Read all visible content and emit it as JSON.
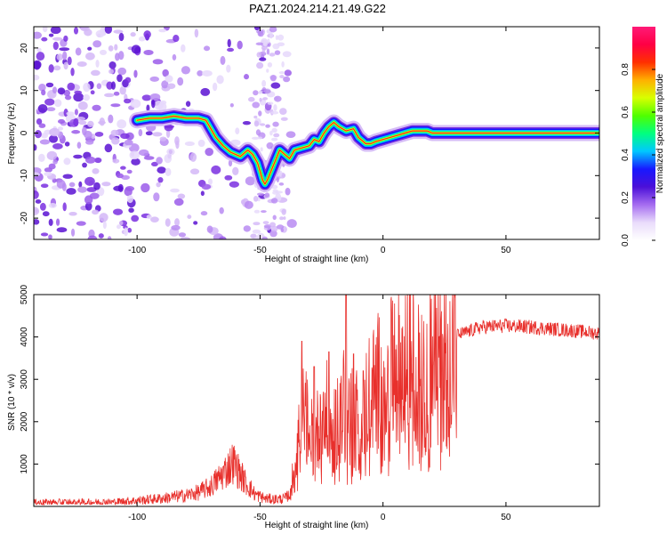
{
  "title": "PAZ1.2024.214.21.49.G22",
  "chart_data": [
    {
      "type": "heatmap",
      "xlabel": "Height of straight line (km)",
      "ylabel": "Frequency (Hz)",
      "xlim": [
        -142,
        88
      ],
      "ylim": [
        -25,
        25
      ],
      "xticks": [
        -100,
        -50,
        0,
        50
      ],
      "yticks": [
        -20,
        -10,
        0,
        10,
        20
      ],
      "ridge_path": [
        [
          -100,
          3
        ],
        [
          -95,
          3.5
        ],
        [
          -90,
          3.5
        ],
        [
          -85,
          4
        ],
        [
          -80,
          3.5
        ],
        [
          -75,
          3.5
        ],
        [
          -72,
          3
        ],
        [
          -70,
          1
        ],
        [
          -68,
          -1
        ],
        [
          -65,
          -3
        ],
        [
          -62,
          -4.5
        ],
        [
          -60,
          -5
        ],
        [
          -58,
          -5.5
        ],
        [
          -55,
          -4
        ],
        [
          -53,
          -5
        ],
        [
          -51,
          -7
        ],
        [
          -50,
          -9
        ],
        [
          -49,
          -11
        ],
        [
          -48,
          -12
        ],
        [
          -47,
          -11
        ],
        [
          -42,
          -4
        ],
        [
          -40,
          -5
        ],
        [
          -38,
          -6
        ],
        [
          -36,
          -4
        ],
        [
          -33,
          -3.5
        ],
        [
          -30,
          -3
        ],
        [
          -28,
          -1.5
        ],
        [
          -26,
          -2
        ],
        [
          -24,
          0
        ],
        [
          -22,
          1.5
        ],
        [
          -20,
          2.5
        ],
        [
          -18,
          1.5
        ],
        [
          -15,
          0.5
        ],
        [
          -12,
          1
        ],
        [
          -10,
          -1
        ],
        [
          -7,
          -2.5
        ],
        [
          -5,
          -2.5
        ],
        [
          -3,
          -2
        ],
        [
          0,
          -1.5
        ],
        [
          3,
          -1
        ],
        [
          6,
          -0.5
        ],
        [
          9,
          0
        ],
        [
          12,
          0.5
        ],
        [
          15,
          0.5
        ],
        [
          18,
          0.5
        ],
        [
          20,
          0
        ],
        [
          88,
          0
        ]
      ],
      "colorbar": {
        "label": "Normalized spectral amplitude",
        "range": [
          0.0,
          1.0
        ],
        "ticks": [
          "0.0",
          "0.2",
          "0.4",
          "0.6",
          "0.8"
        ],
        "colors": [
          "#ffffff",
          "#e9dcfb",
          "#a56cf0",
          "#4b10d8",
          "#1818ff",
          "#00c8ff",
          "#00ff80",
          "#50ff00",
          "#d8ff00",
          "#ffb000",
          "#ff3000",
          "#ff0044",
          "#ff1a77"
        ]
      }
    },
    {
      "type": "line",
      "xlabel": "Height of straight line (km)",
      "ylabel": "SNR (10 * v/v)",
      "xlim": [
        -142,
        88
      ],
      "ylim": [
        0,
        5000
      ],
      "xticks": [
        -100,
        -50,
        0,
        50
      ],
      "yticks": [
        1000,
        2000,
        3000,
        4000,
        5000
      ],
      "color": "#e8302c",
      "series_envelope": [
        [
          -142,
          100
        ],
        [
          -110,
          110
        ],
        [
          -100,
          150
        ],
        [
          -90,
          200
        ],
        [
          -80,
          280
        ],
        [
          -75,
          350
        ],
        [
          -70,
          500
        ],
        [
          -66,
          750
        ],
        [
          -63,
          950
        ],
        [
          -61,
          1100
        ],
        [
          -59,
          900
        ],
        [
          -56,
          600
        ],
        [
          -52,
          300
        ],
        [
          -48,
          200
        ],
        [
          -44,
          180
        ],
        [
          -40,
          200
        ],
        [
          -38,
          300
        ],
        [
          -36,
          1000
        ],
        [
          -34,
          2000
        ],
        [
          -32,
          2300
        ],
        [
          -30,
          2000
        ],
        [
          -28,
          1500
        ],
        [
          -26,
          2100
        ],
        [
          -24,
          2700
        ],
        [
          -22,
          2000
        ],
        [
          -20,
          1800
        ],
        [
          -18,
          2300
        ],
        [
          -16,
          2600
        ],
        [
          -14,
          2300
        ],
        [
          -12,
          2200
        ],
        [
          -10,
          2300
        ],
        [
          -8,
          2500
        ],
        [
          -6,
          2700
        ],
        [
          -4,
          2900
        ],
        [
          -2,
          3100
        ],
        [
          0,
          3200
        ],
        [
          3,
          3300
        ],
        [
          6,
          3400
        ],
        [
          9,
          3500
        ],
        [
          12,
          3600
        ],
        [
          15,
          3550
        ],
        [
          20,
          3700
        ],
        [
          25,
          3900
        ],
        [
          30,
          4050
        ],
        [
          35,
          4150
        ],
        [
          40,
          4250
        ],
        [
          50,
          4280
        ],
        [
          60,
          4250
        ],
        [
          70,
          4200
        ],
        [
          80,
          4150
        ],
        [
          88,
          4100
        ]
      ],
      "spikes": [
        [
          -33,
          3900
        ],
        [
          -28,
          3300
        ],
        [
          -22,
          3650
        ],
        [
          -15,
          5000
        ],
        [
          -12,
          3600
        ],
        [
          -8,
          3200
        ]
      ]
    }
  ]
}
